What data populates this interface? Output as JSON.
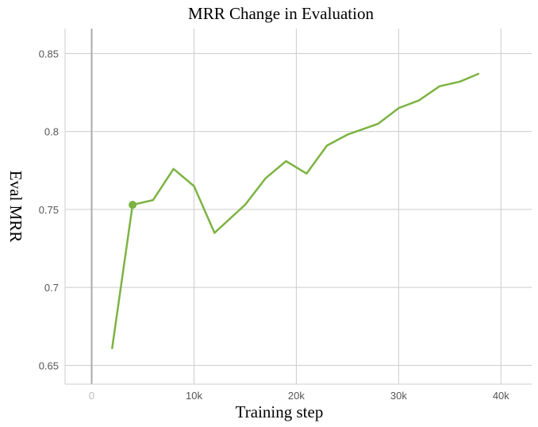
{
  "chart_data": {
    "type": "line",
    "title": "MRR Change in Evaluation",
    "xlabel": "Training step",
    "ylabel": "Eval MRR",
    "xlim": [
      -2600,
      43000
    ],
    "ylim": [
      0.638,
      0.866
    ],
    "x_ticks": [
      {
        "value": 0,
        "label": "0"
      },
      {
        "value": 10000,
        "label": "10k"
      },
      {
        "value": 20000,
        "label": "20k"
      },
      {
        "value": 30000,
        "label": "30k"
      },
      {
        "value": 40000,
        "label": "40k"
      }
    ],
    "y_ticks": [
      {
        "value": 0.65,
        "label": "0.65"
      },
      {
        "value": 0.7,
        "label": "0.7"
      },
      {
        "value": 0.75,
        "label": "0.75"
      },
      {
        "value": 0.8,
        "label": "0.8"
      },
      {
        "value": 0.85,
        "label": "0.85"
      }
    ],
    "grid": true,
    "colors": {
      "line": "#7cb342",
      "grid": "#cccccc",
      "zero_line": "#aaaaaa"
    },
    "series": [
      {
        "x": [
          2000,
          4000,
          6000,
          8000,
          10000,
          12000,
          15000,
          17000,
          19000,
          21000,
          23000,
          25000,
          28000,
          30000,
          32000,
          34000,
          36000,
          37800
        ],
        "y": [
          0.661,
          0.753,
          0.756,
          0.776,
          0.765,
          0.735,
          0.753,
          0.77,
          0.781,
          0.773,
          0.791,
          0.798,
          0.805,
          0.815,
          0.82,
          0.829,
          0.832,
          0.837
        ]
      }
    ],
    "highlight": {
      "x": 4000,
      "y": 0.753
    }
  }
}
